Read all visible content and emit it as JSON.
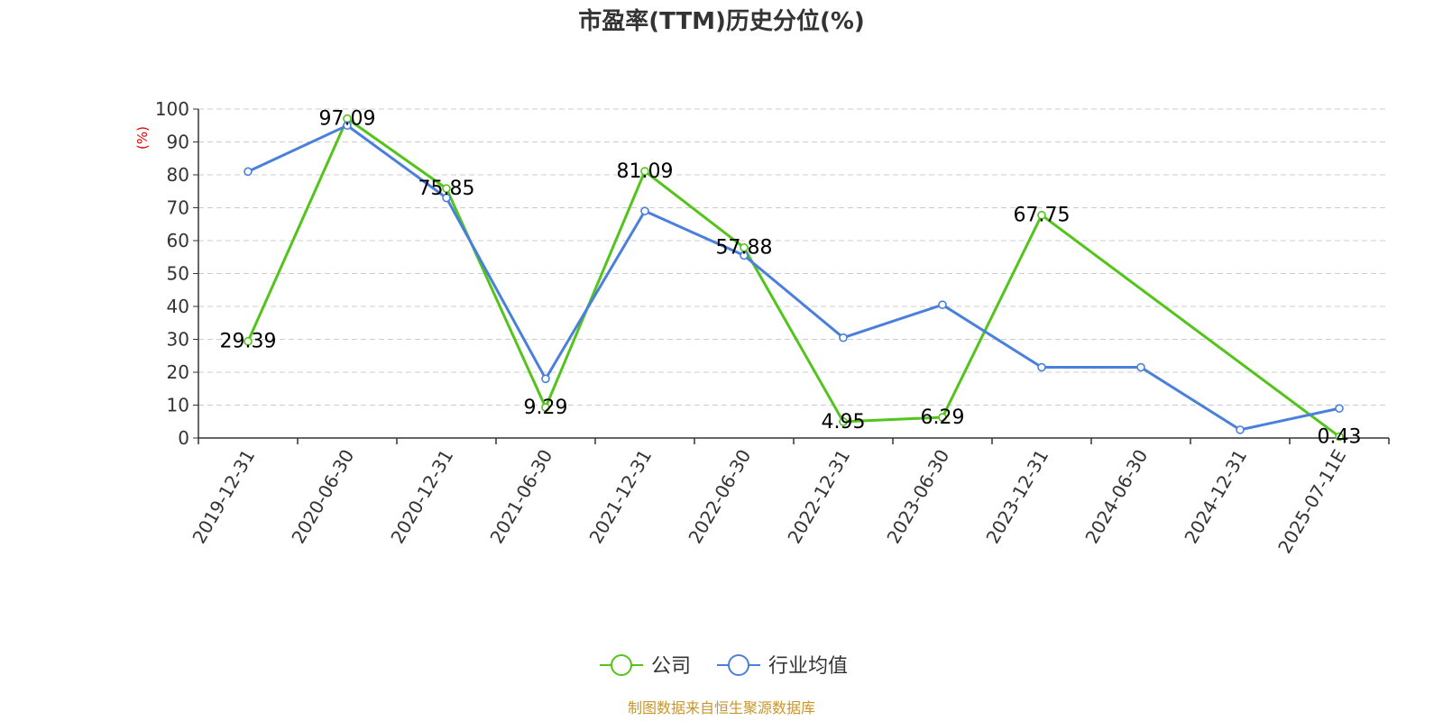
{
  "chart_data": {
    "type": "line",
    "title": "市盈率(TTM)历史分位(%)",
    "ylabel": "(%)",
    "ylim": [
      0,
      100
    ],
    "yticks": [
      0,
      10,
      20,
      30,
      40,
      50,
      60,
      70,
      80,
      90,
      100
    ],
    "grid": true,
    "legend_position": "bottom",
    "categories": [
      "2019-12-31",
      "2020-06-30",
      "2020-12-31",
      "2021-06-30",
      "2021-12-31",
      "2022-06-30",
      "2022-12-31",
      "2023-06-30",
      "2023-12-31",
      "2024-06-30",
      "2024-12-31",
      "2025-07-11E"
    ],
    "series": [
      {
        "name": "公司",
        "color": "#52c41a",
        "values": [
          29.39,
          97.09,
          75.85,
          9.29,
          81.09,
          57.88,
          4.95,
          6.29,
          67.75,
          null,
          null,
          0.43
        ],
        "labels": [
          "29.39",
          "97.09",
          "75.85",
          "9.29",
          "81.09",
          "57.88",
          "4.95",
          "6.29",
          "67.75",
          null,
          null,
          "0.43"
        ]
      },
      {
        "name": "行业均值",
        "color": "#4a7fdc",
        "values": [
          81,
          95,
          73,
          18,
          69,
          55.5,
          30.5,
          40.5,
          21.5,
          21.5,
          2.5,
          9
        ]
      }
    ],
    "source": "制图数据来自恒生聚源数据库"
  }
}
